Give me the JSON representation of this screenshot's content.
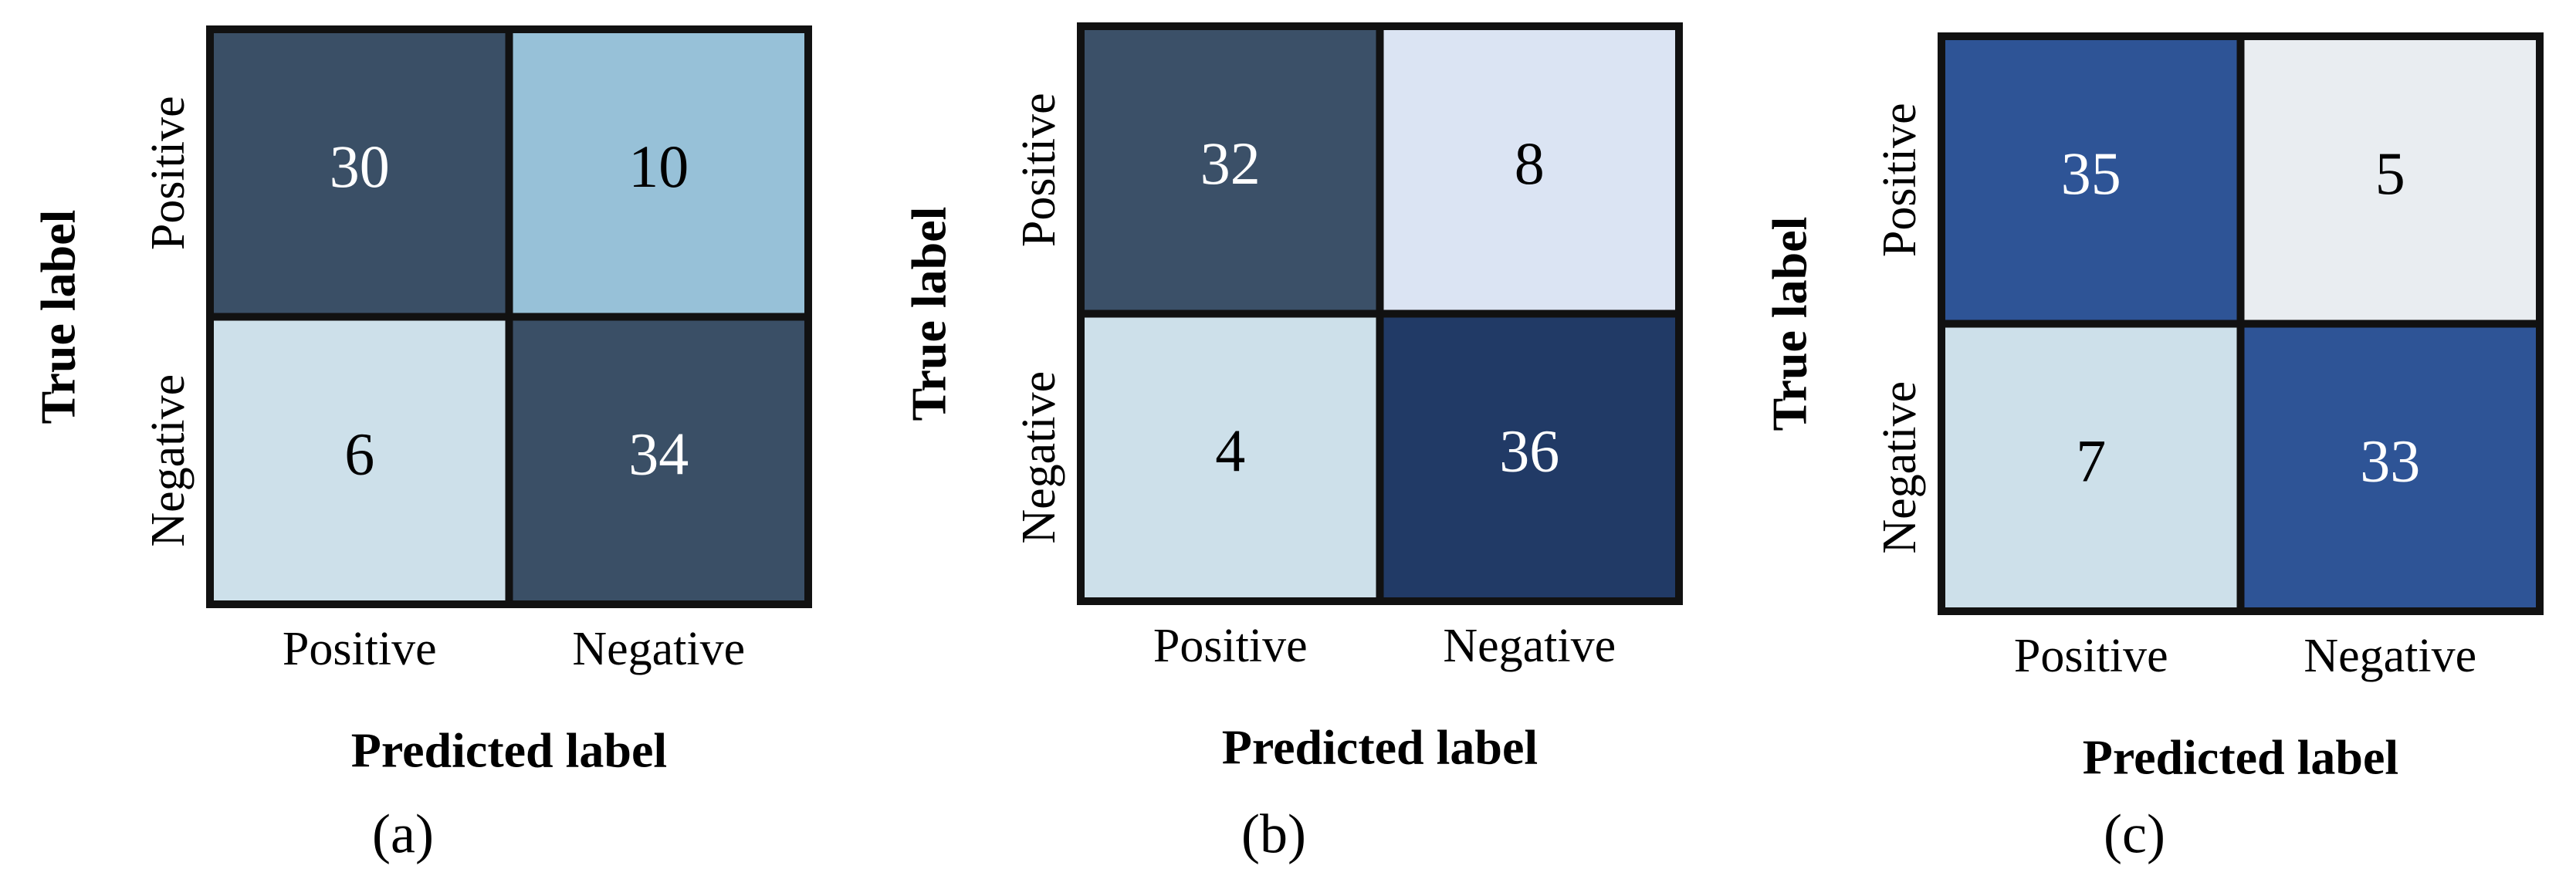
{
  "chart_data": [
    {
      "type": "heatmap",
      "caption": "(a)",
      "x_label": "Predicted label",
      "y_label": "True label",
      "x_categories": [
        "Positive",
        "Negative"
      ],
      "y_categories": [
        "Positive",
        "Negative"
      ],
      "values": [
        [
          30,
          10
        ],
        [
          6,
          34
        ]
      ],
      "colors": [
        [
          "#3a4f66",
          "#97c1d8"
        ],
        [
          "#cde0ea",
          "#3a4f66"
        ]
      ],
      "text_colors": [
        [
          "#ffffff",
          "#000000"
        ],
        [
          "#000000",
          "#ffffff"
        ]
      ]
    },
    {
      "type": "heatmap",
      "caption": "(b)",
      "x_label": "Predicted label",
      "y_label": "True label",
      "x_categories": [
        "Positive",
        "Negative"
      ],
      "y_categories": [
        "Positive",
        "Negative"
      ],
      "values": [
        [
          32,
          8
        ],
        [
          4,
          36
        ]
      ],
      "colors": [
        [
          "#3b5068",
          "#dbe4f3"
        ],
        [
          "#cde0ea",
          "#213a66"
        ]
      ],
      "text_colors": [
        [
          "#ffffff",
          "#000000"
        ],
        [
          "#000000",
          "#ffffff"
        ]
      ]
    },
    {
      "type": "heatmap",
      "caption": "(c)",
      "x_label": "Predicted label",
      "y_label": "True label",
      "x_categories": [
        "Positive",
        "Negative"
      ],
      "y_categories": [
        "Positive",
        "Negative"
      ],
      "values": [
        [
          35,
          5
        ],
        [
          7,
          33
        ]
      ],
      "colors": [
        [
          "#2e5496",
          "#e9edf1"
        ],
        [
          "#cde0ea",
          "#2e5496"
        ]
      ],
      "text_colors": [
        [
          "#ffffff",
          "#000000"
        ],
        [
          "#000000",
          "#ffffff"
        ]
      ]
    }
  ]
}
